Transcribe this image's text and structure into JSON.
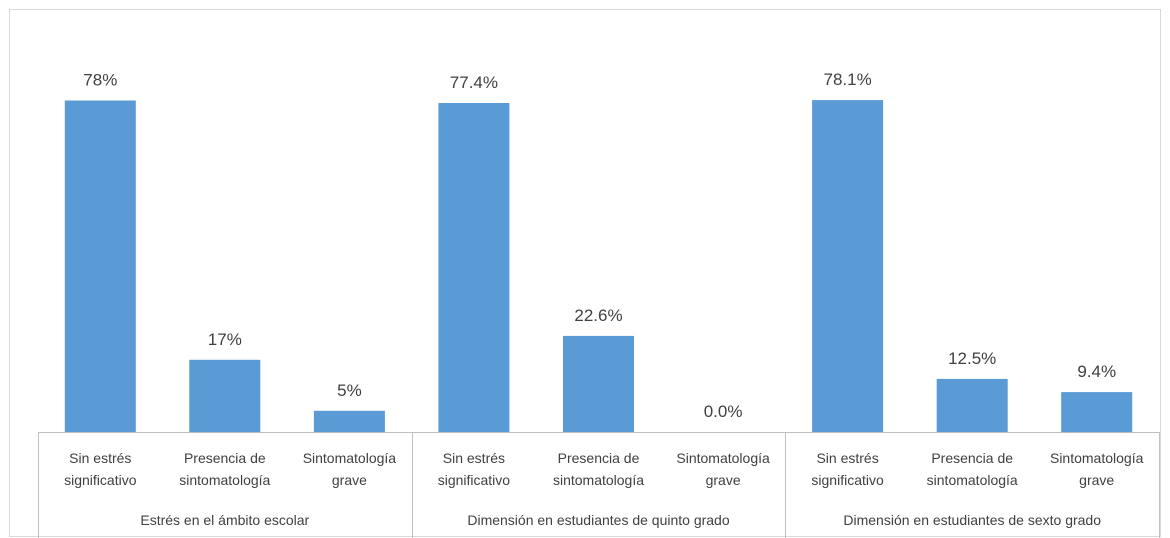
{
  "chart_data": {
    "type": "bar",
    "title": "",
    "xlabel": "",
    "ylabel": "",
    "ylim": [
      0,
      80
    ],
    "grid": false,
    "legend": "none",
    "bar_color": "#5b9bd5",
    "groups": [
      {
        "name": "Estrés en el ámbito escolar",
        "bars": [
          {
            "category": [
              "Sin estrés",
              "significativo"
            ],
            "value": 78,
            "label": "78%"
          },
          {
            "category": [
              "Presencia de",
              "sintomatología"
            ],
            "value": 17,
            "label": "17%"
          },
          {
            "category": [
              "Sintomatología",
              "grave"
            ],
            "value": 5,
            "label": "5%"
          }
        ]
      },
      {
        "name": "Dimensión en estudiantes de quinto grado",
        "bars": [
          {
            "category": [
              "Sin estrés",
              "significativo"
            ],
            "value": 77.4,
            "label": "77.4%"
          },
          {
            "category": [
              "Presencia de",
              "sintomatología"
            ],
            "value": 22.6,
            "label": "22.6%"
          },
          {
            "category": [
              "Sintomatología",
              "grave"
            ],
            "value": 0.0,
            "label": "0.0%"
          }
        ]
      },
      {
        "name": "Dimensión en estudiantes de sexto grado",
        "bars": [
          {
            "category": [
              "Sin estrés",
              "significativo"
            ],
            "value": 78.1,
            "label": "78.1%"
          },
          {
            "category": [
              "Presencia de",
              "sintomatología"
            ],
            "value": 12.5,
            "label": "12.5%"
          },
          {
            "category": [
              "Sintomatología",
              "grave"
            ],
            "value": 9.4,
            "label": "9.4%"
          }
        ]
      }
    ]
  }
}
